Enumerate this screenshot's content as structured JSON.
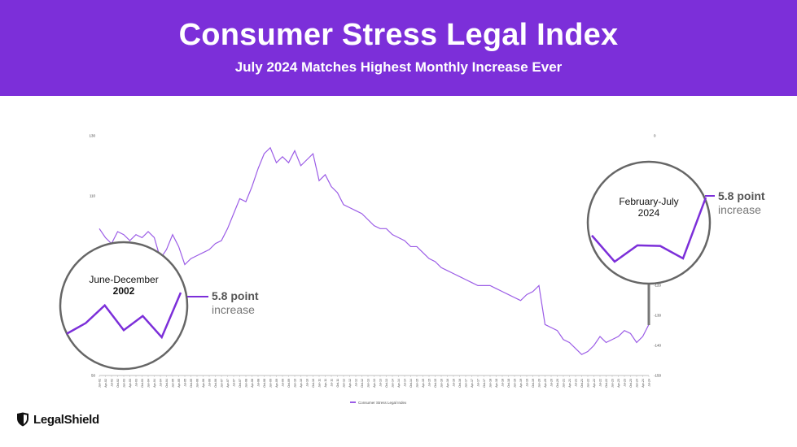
{
  "header": {
    "title": "Consumer Stress Legal Index",
    "subtitle": "July 2024 Matches Highest Monthly Increase Ever"
  },
  "brand": {
    "name": "LegalShield",
    "accent": "#7C2FD9"
  },
  "callouts": [
    {
      "period_line1": "June-December",
      "period_line2": "2002",
      "value": "5.8 point",
      "label": "increase"
    },
    {
      "period_line1": "February-July",
      "period_line2": "2024",
      "value": "5.8 point",
      "label": "increase"
    }
  ],
  "chart_data": {
    "type": "line",
    "title": "Consumer Stress Legal Index",
    "legend": {
      "entries": [
        "Consumer Stress Legal Index"
      ],
      "placement": "bottom"
    },
    "line_color": "#9B5CE6",
    "ylim": [
      50,
      130
    ],
    "y_ticks": [
      "130",
      "110",
      "90",
      "70",
      "50"
    ],
    "y2_ticks": [
      "0",
      "-120",
      "-130",
      "-140",
      "-150"
    ],
    "x": [
      "Jan-02",
      "Apr-02",
      "Jul-02",
      "Oct-02",
      "Jan-03",
      "Apr-03",
      "Jul-03",
      "Oct-03",
      "Jan-04",
      "Apr-04",
      "Jul-04",
      "Oct-04",
      "Jan-05",
      "Apr-05",
      "Jul-05",
      "Oct-05",
      "Jan-06",
      "Apr-06",
      "Jul-06",
      "Oct-06",
      "Jan-07",
      "Apr-07",
      "Jul-07",
      "Oct-07",
      "Jan-08",
      "Apr-08",
      "Jul-08",
      "Oct-08",
      "Jan-09",
      "Apr-09",
      "Jul-09",
      "Oct-09",
      "Jan-10",
      "Apr-10",
      "Jul-10",
      "Oct-10",
      "Jan-11",
      "Apr-11",
      "Jul-11",
      "Oct-11",
      "Jan-12",
      "Apr-12",
      "Jul-12",
      "Oct-12",
      "Jan-13",
      "Apr-13",
      "Jul-13",
      "Oct-13",
      "Jan-14",
      "Apr-14",
      "Jul-14",
      "Oct-14",
      "Jan-15",
      "Apr-15",
      "Jul-15",
      "Oct-15",
      "Jan-16",
      "Apr-16",
      "Jul-16",
      "Oct-16",
      "Jan-17",
      "Apr-17",
      "Jul-17",
      "Oct-17",
      "Jan-18",
      "Apr-18",
      "Jul-18",
      "Oct-18",
      "Jan-19",
      "Apr-19",
      "Jul-19",
      "Oct-19",
      "Jan-20",
      "Apr-20",
      "Jul-20",
      "Oct-20",
      "Jan-21",
      "Apr-21",
      "Jul-21",
      "Oct-21",
      "Jan-22",
      "Apr-22",
      "Jul-22",
      "Oct-22",
      "Jan-23",
      "Apr-23",
      "Jul-23",
      "Oct-23",
      "Jan-24",
      "Apr-24",
      "Jul-24"
    ],
    "values": [
      99,
      96,
      94,
      98,
      97,
      95,
      97,
      96,
      98,
      96,
      89,
      92,
      97,
      93,
      87,
      89,
      90,
      91,
      92,
      94,
      95,
      99,
      104,
      109,
      108,
      113,
      119,
      124,
      126,
      121,
      123,
      121,
      125,
      120,
      122,
      124,
      115,
      117,
      113,
      111,
      107,
      106,
      105,
      104,
      102,
      100,
      99,
      99,
      97,
      96,
      95,
      93,
      93,
      91,
      89,
      88,
      86,
      85,
      84,
      83,
      82,
      81,
      80,
      80,
      80,
      79,
      78,
      77,
      76,
      75,
      77,
      78,
      80,
      67,
      66,
      65,
      62,
      61,
      59,
      57,
      58,
      60,
      63,
      61,
      62,
      63,
      65,
      64,
      61,
      63,
      67
    ],
    "insets": [
      {
        "period": "Jun-02 to Dec-02",
        "values": [
          93.5,
          95,
          97.5,
          94,
          96,
          93,
          99.3
        ]
      },
      {
        "period": "Feb-24 to Jul-24",
        "values": [
          61,
          57,
          59.5,
          59.4,
          57.5,
          66.8
        ]
      }
    ]
  }
}
